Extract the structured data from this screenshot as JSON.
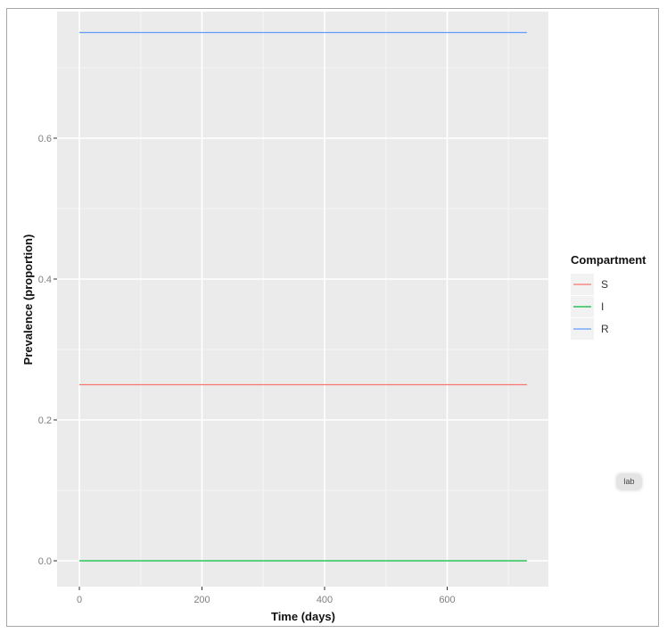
{
  "chart_data": {
    "type": "line",
    "title": "",
    "xlabel": "Time (days)",
    "ylabel": "Prevalence (proportion)",
    "xlim": [
      -36,
      765
    ],
    "ylim": [
      -0.037,
      0.777
    ],
    "x_ticks": [
      0,
      200,
      400,
      600
    ],
    "x_tick_labels": [
      "0",
      "200",
      "400",
      "600"
    ],
    "y_ticks": [
      0.0,
      0.2,
      0.4,
      0.6
    ],
    "y_tick_labels": [
      "0.0",
      "0.2",
      "0.4",
      "0.6"
    ],
    "grid": true,
    "legend_position": "right",
    "legend_title": "Compartment",
    "x": [
      0,
      730
    ],
    "series": [
      {
        "name": "S",
        "color": "#F8766D",
        "values": [
          0.25,
          0.25
        ]
      },
      {
        "name": "I",
        "color": "#00BA38",
        "values": [
          0.0,
          0.0
        ]
      },
      {
        "name": "R",
        "color": "#619CFF",
        "values": [
          0.75,
          0.75
        ]
      }
    ]
  },
  "badge": {
    "label": "lab"
  },
  "colors": {
    "panel_bg": "#EBEBEB",
    "grid_major": "#FFFFFF",
    "grid_minor": "#F5F5F5"
  }
}
